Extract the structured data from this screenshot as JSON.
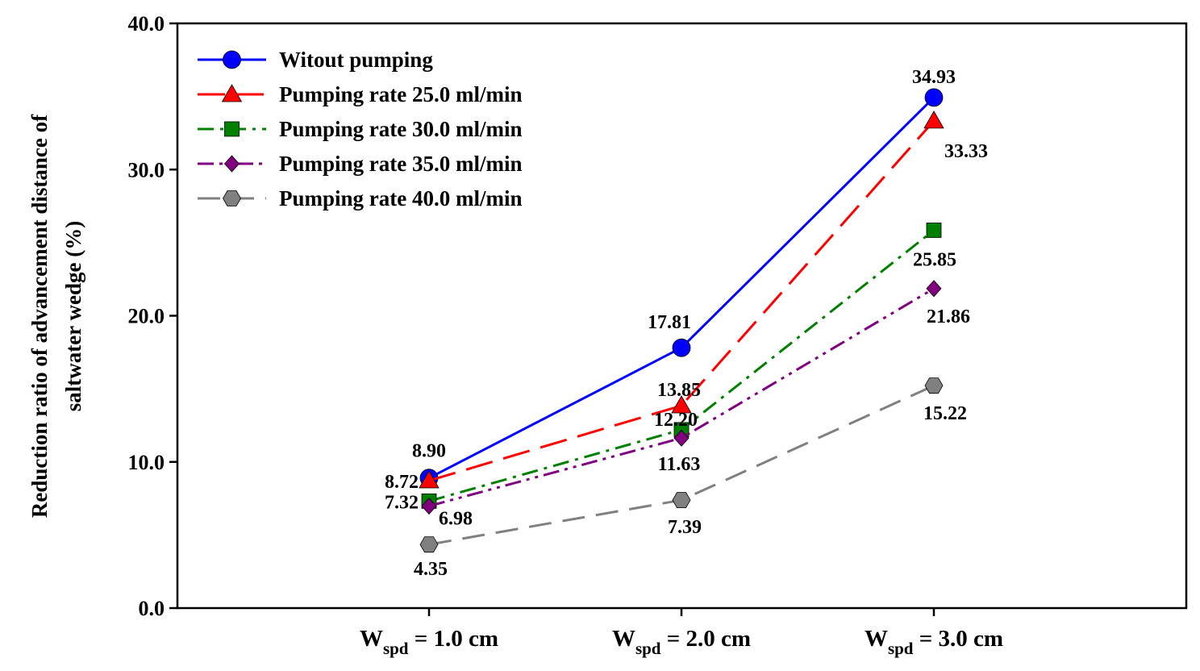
{
  "chart_data": {
    "type": "line",
    "ylabel_line1": "Reduction ratio of advancement distance of",
    "ylabel_line2": "saltwater wedge (%)",
    "xlabel": "",
    "ylim": [
      0,
      40
    ],
    "y_ticks": [
      "0.0",
      "10.0",
      "20.0",
      "30.0",
      "40.0"
    ],
    "categories": [
      {
        "main": "W",
        "sub": "spd",
        "rest": " = 1.0 cm"
      },
      {
        "main": "W",
        "sub": "spd",
        "rest": " = 2.0 cm"
      },
      {
        "main": "W",
        "sub": "spd",
        "rest": " = 3.0 cm"
      }
    ],
    "legend_position": "top-left",
    "grid": false,
    "series": [
      {
        "name": "Witout pumping",
        "values": [
          8.9,
          17.81,
          34.93
        ],
        "labels": [
          "8.90",
          "17.81",
          "34.93"
        ],
        "color": "#0000ff",
        "marker": "circle",
        "dash": "solid"
      },
      {
        "name": "Pumping rate 25.0 ml/min",
        "values": [
          8.72,
          13.85,
          33.33
        ],
        "labels": [
          "8.72",
          "13.85",
          "33.33"
        ],
        "color": "#ff0000",
        "marker": "triangle",
        "dash": "long-dash"
      },
      {
        "name": "Pumping rate 30.0 ml/min",
        "values": [
          7.32,
          12.2,
          25.85
        ],
        "labels": [
          "7.32",
          "12.20",
          "25.85"
        ],
        "color": "#008000",
        "marker": "square",
        "dash": "dash-dot"
      },
      {
        "name": "Pumping rate 35.0 ml/min",
        "values": [
          6.98,
          11.63,
          21.86
        ],
        "labels": [
          "6.98",
          "11.63",
          "21.86"
        ],
        "color": "#800080",
        "marker": "diamond",
        "dash": "dash-dot-dot"
      },
      {
        "name": "Pumping rate 40.0 ml/min",
        "values": [
          4.35,
          7.39,
          15.22
        ],
        "labels": [
          "4.35",
          "7.39",
          "15.22"
        ],
        "color": "#808080",
        "marker": "hexagon",
        "dash": "dash"
      }
    ]
  }
}
